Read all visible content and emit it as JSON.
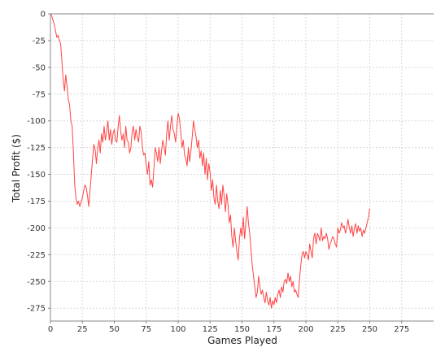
{
  "chart_data": {
    "type": "line",
    "title": "",
    "xlabel": "Games Played",
    "ylabel": "Total Profit ($)",
    "xlim": [
      0,
      300
    ],
    "ylim": [
      -287,
      0
    ],
    "x_ticks": [
      0,
      25,
      50,
      75,
      100,
      125,
      150,
      175,
      200,
      225,
      250,
      275
    ],
    "y_ticks": [
      0,
      -25,
      -50,
      -75,
      -100,
      -125,
      -150,
      -175,
      -200,
      -225,
      -250,
      -275
    ],
    "grid": true,
    "legend": "none",
    "colors": {
      "series": "#ff4444",
      "grid": "#d9d9d9",
      "axis": "#888888",
      "zero_line": "#808080"
    },
    "series": [
      {
        "points": [
          [
            0,
            0
          ],
          [
            1,
            -2
          ],
          [
            2,
            -6
          ],
          [
            3,
            -10
          ],
          [
            4,
            -16
          ],
          [
            5,
            -22
          ],
          [
            6,
            -20
          ],
          [
            7,
            -25
          ],
          [
            8,
            -28
          ],
          [
            9,
            -45
          ],
          [
            10,
            -62
          ],
          [
            11,
            -72
          ],
          [
            12,
            -57
          ],
          [
            13,
            -68
          ],
          [
            14,
            -80
          ],
          [
            15,
            -85
          ],
          [
            16,
            -100
          ],
          [
            17,
            -105
          ],
          [
            18,
            -130
          ],
          [
            19,
            -160
          ],
          [
            20,
            -172
          ],
          [
            21,
            -178
          ],
          [
            22,
            -175
          ],
          [
            23,
            -180
          ],
          [
            24,
            -176
          ],
          [
            25,
            -172
          ],
          [
            26,
            -165
          ],
          [
            27,
            -160
          ],
          [
            28,
            -162
          ],
          [
            29,
            -170
          ],
          [
            30,
            -180
          ],
          [
            31,
            -165
          ],
          [
            32,
            -150
          ],
          [
            33,
            -135
          ],
          [
            34,
            -122
          ],
          [
            35,
            -127
          ],
          [
            36,
            -140
          ],
          [
            37,
            -125
          ],
          [
            38,
            -118
          ],
          [
            39,
            -130
          ],
          [
            40,
            -112
          ],
          [
            41,
            -120
          ],
          [
            42,
            -105
          ],
          [
            43,
            -118
          ],
          [
            44,
            -110
          ],
          [
            45,
            -100
          ],
          [
            46,
            -118
          ],
          [
            47,
            -108
          ],
          [
            48,
            -122
          ],
          [
            49,
            -112
          ],
          [
            50,
            -108
          ],
          [
            51,
            -118
          ],
          [
            52,
            -120
          ],
          [
            53,
            -105
          ],
          [
            54,
            -95
          ],
          [
            55,
            -110
          ],
          [
            56,
            -118
          ],
          [
            57,
            -112
          ],
          [
            58,
            -125
          ],
          [
            59,
            -105
          ],
          [
            60,
            -118
          ],
          [
            61,
            -120
          ],
          [
            62,
            -130
          ],
          [
            63,
            -125
          ],
          [
            64,
            -110
          ],
          [
            65,
            -105
          ],
          [
            66,
            -118
          ],
          [
            67,
            -108
          ],
          [
            68,
            -115
          ],
          [
            69,
            -120
          ],
          [
            70,
            -105
          ],
          [
            71,
            -110
          ],
          [
            72,
            -125
          ],
          [
            73,
            -132
          ],
          [
            74,
            -130
          ],
          [
            75,
            -142
          ],
          [
            76,
            -150
          ],
          [
            77,
            -138
          ],
          [
            78,
            -160
          ],
          [
            79,
            -155
          ],
          [
            80,
            -162
          ],
          [
            81,
            -145
          ],
          [
            82,
            -125
          ],
          [
            83,
            -130
          ],
          [
            84,
            -138
          ],
          [
            85,
            -125
          ],
          [
            86,
            -140
          ],
          [
            87,
            -128
          ],
          [
            88,
            -118
          ],
          [
            89,
            -125
          ],
          [
            90,
            -132
          ],
          [
            91,
            -112
          ],
          [
            92,
            -100
          ],
          [
            93,
            -118
          ],
          [
            94,
            -105
          ],
          [
            95,
            -95
          ],
          [
            96,
            -108
          ],
          [
            97,
            -112
          ],
          [
            98,
            -120
          ],
          [
            99,
            -105
          ],
          [
            100,
            -93
          ],
          [
            101,
            -98
          ],
          [
            102,
            -110
          ],
          [
            103,
            -125
          ],
          [
            104,
            -118
          ],
          [
            105,
            -132
          ],
          [
            106,
            -135
          ],
          [
            107,
            -142
          ],
          [
            108,
            -125
          ],
          [
            109,
            -138
          ],
          [
            110,
            -128
          ],
          [
            111,
            -115
          ],
          [
            112,
            -100
          ],
          [
            113,
            -108
          ],
          [
            114,
            -115
          ],
          [
            115,
            -125
          ],
          [
            116,
            -118
          ],
          [
            117,
            -135
          ],
          [
            118,
            -128
          ],
          [
            119,
            -142
          ],
          [
            120,
            -130
          ],
          [
            121,
            -150
          ],
          [
            122,
            -135
          ],
          [
            123,
            -155
          ],
          [
            124,
            -140
          ],
          [
            125,
            -148
          ],
          [
            126,
            -165
          ],
          [
            127,
            -155
          ],
          [
            128,
            -172
          ],
          [
            129,
            -178
          ],
          [
            130,
            -160
          ],
          [
            131,
            -175
          ],
          [
            132,
            -182
          ],
          [
            133,
            -165
          ],
          [
            134,
            -178
          ],
          [
            135,
            -160
          ],
          [
            136,
            -170
          ],
          [
            137,
            -185
          ],
          [
            138,
            -168
          ],
          [
            139,
            -178
          ],
          [
            140,
            -195
          ],
          [
            141,
            -188
          ],
          [
            142,
            -208
          ],
          [
            143,
            -218
          ],
          [
            144,
            -200
          ],
          [
            145,
            -212
          ],
          [
            146,
            -222
          ],
          [
            147,
            -230
          ],
          [
            148,
            -210
          ],
          [
            149,
            -200
          ],
          [
            150,
            -208
          ],
          [
            151,
            -190
          ],
          [
            152,
            -210
          ],
          [
            153,
            -195
          ],
          [
            154,
            -180
          ],
          [
            155,
            -195
          ],
          [
            156,
            -205
          ],
          [
            157,
            -220
          ],
          [
            158,
            -235
          ],
          [
            159,
            -245
          ],
          [
            160,
            -255
          ],
          [
            161,
            -265
          ],
          [
            162,
            -260
          ],
          [
            163,
            -245
          ],
          [
            164,
            -255
          ],
          [
            165,
            -262
          ],
          [
            166,
            -258
          ],
          [
            167,
            -265
          ],
          [
            168,
            -270
          ],
          [
            169,
            -260
          ],
          [
            170,
            -268
          ],
          [
            171,
            -272
          ],
          [
            172,
            -265
          ],
          [
            173,
            -275
          ],
          [
            174,
            -268
          ],
          [
            175,
            -272
          ],
          [
            176,
            -265
          ],
          [
            177,
            -270
          ],
          [
            178,
            -262
          ],
          [
            179,
            -258
          ],
          [
            180,
            -265
          ],
          [
            181,
            -255
          ],
          [
            182,
            -260
          ],
          [
            183,
            -250
          ],
          [
            184,
            -248
          ],
          [
            185,
            -252
          ],
          [
            186,
            -242
          ],
          [
            187,
            -250
          ],
          [
            188,
            -245
          ],
          [
            189,
            -255
          ],
          [
            190,
            -250
          ],
          [
            191,
            -260
          ],
          [
            192,
            -258
          ],
          [
            193,
            -262
          ],
          [
            194,
            -265
          ],
          [
            195,
            -248
          ],
          [
            196,
            -235
          ],
          [
            197,
            -225
          ],
          [
            198,
            -222
          ],
          [
            199,
            -228
          ],
          [
            200,
            -222
          ],
          [
            201,
            -225
          ],
          [
            202,
            -230
          ],
          [
            203,
            -215
          ],
          [
            204,
            -222
          ],
          [
            205,
            -228
          ],
          [
            206,
            -210
          ],
          [
            207,
            -205
          ],
          [
            208,
            -215
          ],
          [
            209,
            -205
          ],
          [
            210,
            -208
          ],
          [
            211,
            -212
          ],
          [
            212,
            -200
          ],
          [
            213,
            -212
          ],
          [
            214,
            -208
          ],
          [
            215,
            -210
          ],
          [
            216,
            -205
          ],
          [
            217,
            -210
          ],
          [
            218,
            -220
          ],
          [
            219,
            -215
          ],
          [
            220,
            -212
          ],
          [
            221,
            -208
          ],
          [
            222,
            -210
          ],
          [
            223,
            -215
          ],
          [
            224,
            -218
          ],
          [
            225,
            -200
          ],
          [
            226,
            -205
          ],
          [
            227,
            -202
          ],
          [
            228,
            -195
          ],
          [
            229,
            -200
          ],
          [
            230,
            -198
          ],
          [
            231,
            -205
          ],
          [
            232,
            -200
          ],
          [
            233,
            -192
          ],
          [
            234,
            -200
          ],
          [
            235,
            -205
          ],
          [
            236,
            -198
          ],
          [
            237,
            -208
          ],
          [
            238,
            -200
          ],
          [
            239,
            -196
          ],
          [
            240,
            -205
          ],
          [
            241,
            -198
          ],
          [
            242,
            -203
          ],
          [
            243,
            -200
          ],
          [
            244,
            -208
          ],
          [
            245,
            -202
          ],
          [
            246,
            -205
          ],
          [
            247,
            -200
          ],
          [
            248,
            -195
          ],
          [
            249,
            -190
          ],
          [
            250,
            -182
          ]
        ]
      }
    ]
  }
}
